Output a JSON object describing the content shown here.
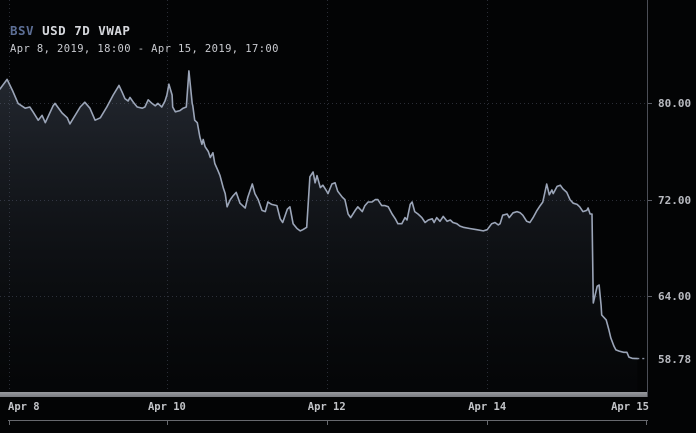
{
  "header": {
    "symbol": "BSV",
    "title_rest": "USD 7D VWAP",
    "range": "Apr 8, 2019, 18:00 - Apr 15, 2019, 17:00",
    "symbol_color": "#5d6f96",
    "title_color": "#d6d8dd",
    "range_color": "#c9cbd0"
  },
  "chart_data": {
    "type": "area",
    "title": "BSV USD 7D VWAP",
    "time_range": "Apr 8, 2019, 18:00 - Apr 15, 2019, 17:00",
    "xlabel": "",
    "ylabel": "",
    "ylim": [
      56.0,
      88.6
    ],
    "grid": true,
    "legend": "none",
    "y_ticks": [
      {
        "label": "80.00",
        "value": 80.0
      },
      {
        "label": "72.00",
        "value": 72.0
      },
      {
        "label": "64.00",
        "value": 64.0
      }
    ],
    "last_price": {
      "label": "58.78",
      "value": 58.78
    },
    "x_ticks": [
      {
        "label": "Apr 8",
        "pos": 0.014,
        "align": "left",
        "grid": true
      },
      {
        "label": "Apr 10",
        "pos": 0.258,
        "align": "center",
        "grid": true
      },
      {
        "label": "Apr 12",
        "pos": 0.505,
        "align": "center",
        "grid": true
      },
      {
        "label": "Apr 14",
        "pos": 0.753,
        "align": "center",
        "grid": true
      },
      {
        "label": "Apr 15",
        "pos": 0.998,
        "align": "right",
        "grid": false
      }
    ],
    "colors": {
      "line": "#9ba5b8",
      "fill_top": "rgba(105,117,140,0.32)",
      "fill_bottom": "rgba(45,52,66,0.04)",
      "grid": "#2a2d36",
      "last_dash": "#8a94a6",
      "axis_label": "#b8bac0",
      "time_label": "#c2c4c8",
      "axis_tick": "#5a5d65",
      "bottom_line": "#67696e"
    },
    "series": [
      {
        "name": "BSV USD VWAP",
        "points": [
          [
            0.0,
            81.2
          ],
          [
            0.011,
            82.0
          ],
          [
            0.02,
            81.0
          ],
          [
            0.028,
            80.0
          ],
          [
            0.039,
            79.6
          ],
          [
            0.046,
            79.7
          ],
          [
            0.051,
            79.3
          ],
          [
            0.059,
            78.6
          ],
          [
            0.065,
            79.0
          ],
          [
            0.07,
            78.4
          ],
          [
            0.082,
            79.8
          ],
          [
            0.085,
            80.0
          ],
          [
            0.096,
            79.2
          ],
          [
            0.104,
            78.8
          ],
          [
            0.108,
            78.3
          ],
          [
            0.124,
            79.7
          ],
          [
            0.131,
            80.1
          ],
          [
            0.139,
            79.6
          ],
          [
            0.147,
            78.6
          ],
          [
            0.155,
            78.8
          ],
          [
            0.165,
            79.7
          ],
          [
            0.175,
            80.7
          ],
          [
            0.184,
            81.5
          ],
          [
            0.189,
            80.9
          ],
          [
            0.193,
            80.4
          ],
          [
            0.198,
            80.2
          ],
          [
            0.201,
            80.5
          ],
          [
            0.206,
            80.1
          ],
          [
            0.212,
            79.7
          ],
          [
            0.22,
            79.6
          ],
          [
            0.224,
            79.7
          ],
          [
            0.229,
            80.3
          ],
          [
            0.235,
            80.0
          ],
          [
            0.24,
            79.8
          ],
          [
            0.244,
            80.0
          ],
          [
            0.25,
            79.7
          ],
          [
            0.255,
            80.2
          ],
          [
            0.258,
            80.7
          ],
          [
            0.261,
            81.6
          ],
          [
            0.266,
            80.7
          ],
          [
            0.267,
            79.7
          ],
          [
            0.271,
            79.3
          ],
          [
            0.278,
            79.4
          ],
          [
            0.283,
            79.6
          ],
          [
            0.288,
            79.7
          ],
          [
            0.292,
            82.7
          ],
          [
            0.297,
            80.0
          ],
          [
            0.298,
            79.8
          ],
          [
            0.301,
            78.6
          ],
          [
            0.305,
            78.4
          ],
          [
            0.309,
            77.2
          ],
          [
            0.312,
            76.6
          ],
          [
            0.314,
            77.0
          ],
          [
            0.317,
            76.4
          ],
          [
            0.322,
            76.0
          ],
          [
            0.325,
            75.5
          ],
          [
            0.329,
            75.9
          ],
          [
            0.332,
            75.0
          ],
          [
            0.337,
            74.4
          ],
          [
            0.34,
            74.0
          ],
          [
            0.345,
            73.0
          ],
          [
            0.348,
            72.5
          ],
          [
            0.351,
            71.4
          ],
          [
            0.356,
            72.0
          ],
          [
            0.36,
            72.3
          ],
          [
            0.365,
            72.6
          ],
          [
            0.371,
            71.7
          ],
          [
            0.379,
            71.3
          ],
          [
            0.383,
            72.2
          ],
          [
            0.39,
            73.3
          ],
          [
            0.394,
            72.5
          ],
          [
            0.399,
            72.0
          ],
          [
            0.405,
            71.1
          ],
          [
            0.41,
            71.0
          ],
          [
            0.414,
            71.8
          ],
          [
            0.42,
            71.6
          ],
          [
            0.428,
            71.5
          ],
          [
            0.433,
            70.4
          ],
          [
            0.437,
            70.1
          ],
          [
            0.444,
            71.2
          ],
          [
            0.448,
            71.4
          ],
          [
            0.453,
            70.0
          ],
          [
            0.459,
            69.6
          ],
          [
            0.464,
            69.4
          ],
          [
            0.468,
            69.5
          ],
          [
            0.474,
            69.7
          ],
          [
            0.479,
            73.9
          ],
          [
            0.484,
            74.3
          ],
          [
            0.487,
            73.4
          ],
          [
            0.49,
            74.0
          ],
          [
            0.495,
            73.0
          ],
          [
            0.499,
            73.2
          ],
          [
            0.505,
            72.7
          ],
          [
            0.507,
            72.5
          ],
          [
            0.513,
            73.3
          ],
          [
            0.518,
            73.4
          ],
          [
            0.522,
            72.7
          ],
          [
            0.529,
            72.2
          ],
          [
            0.533,
            72.0
          ],
          [
            0.538,
            70.8
          ],
          [
            0.542,
            70.5
          ],
          [
            0.549,
            71.1
          ],
          [
            0.553,
            71.4
          ],
          [
            0.56,
            71.0
          ],
          [
            0.564,
            71.5
          ],
          [
            0.569,
            71.8
          ],
          [
            0.575,
            71.8
          ],
          [
            0.58,
            72.0
          ],
          [
            0.584,
            72.0
          ],
          [
            0.59,
            71.5
          ],
          [
            0.595,
            71.5
          ],
          [
            0.6,
            71.4
          ],
          [
            0.606,
            70.8
          ],
          [
            0.611,
            70.4
          ],
          [
            0.615,
            70.0
          ],
          [
            0.621,
            70.0
          ],
          [
            0.626,
            70.5
          ],
          [
            0.629,
            70.3
          ],
          [
            0.634,
            71.6
          ],
          [
            0.637,
            71.8
          ],
          [
            0.641,
            71.0
          ],
          [
            0.646,
            70.8
          ],
          [
            0.652,
            70.5
          ],
          [
            0.657,
            70.1
          ],
          [
            0.662,
            70.3
          ],
          [
            0.668,
            70.4
          ],
          [
            0.671,
            70.1
          ],
          [
            0.675,
            70.5
          ],
          [
            0.68,
            70.2
          ],
          [
            0.685,
            70.6
          ],
          [
            0.691,
            70.2
          ],
          [
            0.696,
            70.3
          ],
          [
            0.7,
            70.1
          ],
          [
            0.706,
            70.0
          ],
          [
            0.711,
            69.8
          ],
          [
            0.716,
            69.7
          ],
          [
            0.726,
            69.6
          ],
          [
            0.737,
            69.5
          ],
          [
            0.747,
            69.4
          ],
          [
            0.753,
            69.5
          ],
          [
            0.76,
            70.0
          ],
          [
            0.765,
            70.1
          ],
          [
            0.77,
            69.9
          ],
          [
            0.773,
            70.0
          ],
          [
            0.777,
            70.7
          ],
          [
            0.784,
            70.8
          ],
          [
            0.787,
            70.5
          ],
          [
            0.793,
            70.9
          ],
          [
            0.799,
            71.0
          ],
          [
            0.804,
            70.9
          ],
          [
            0.808,
            70.7
          ],
          [
            0.814,
            70.2
          ],
          [
            0.819,
            70.1
          ],
          [
            0.824,
            70.5
          ],
          [
            0.83,
            71.1
          ],
          [
            0.835,
            71.5
          ],
          [
            0.839,
            71.8
          ],
          [
            0.845,
            73.3
          ],
          [
            0.849,
            72.4
          ],
          [
            0.853,
            72.8
          ],
          [
            0.855,
            72.5
          ],
          [
            0.861,
            73.1
          ],
          [
            0.866,
            73.2
          ],
          [
            0.87,
            72.9
          ],
          [
            0.876,
            72.6
          ],
          [
            0.881,
            72.0
          ],
          [
            0.886,
            71.7
          ],
          [
            0.892,
            71.6
          ],
          [
            0.896,
            71.4
          ],
          [
            0.901,
            71.0
          ],
          [
            0.907,
            71.1
          ],
          [
            0.909,
            71.3
          ],
          [
            0.912,
            70.8
          ],
          [
            0.915,
            70.8
          ],
          [
            0.917,
            63.4
          ],
          [
            0.923,
            64.8
          ],
          [
            0.926,
            64.9
          ],
          [
            0.929,
            63.2
          ],
          [
            0.93,
            62.4
          ],
          [
            0.937,
            62.0
          ],
          [
            0.941,
            61.2
          ],
          [
            0.944,
            60.5
          ],
          [
            0.949,
            59.8
          ],
          [
            0.952,
            59.5
          ],
          [
            0.957,
            59.4
          ],
          [
            0.964,
            59.3
          ],
          [
            0.969,
            59.3
          ],
          [
            0.972,
            58.9
          ],
          [
            0.977,
            58.8
          ],
          [
            0.985,
            58.78
          ]
        ]
      }
    ]
  }
}
